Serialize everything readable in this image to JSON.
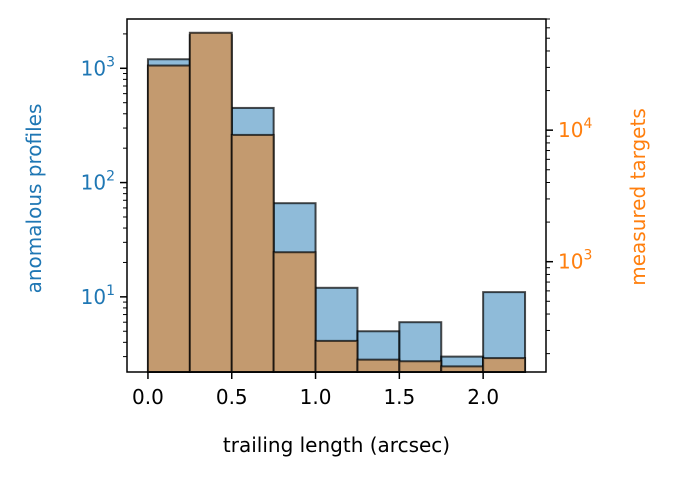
{
  "chart_data": {
    "type": "bar",
    "xlabel": "trailing length (arcsec)",
    "x_ticks": [
      0.0,
      0.5,
      1.0,
      1.5,
      2.0
    ],
    "x_tick_labels": [
      "0.0",
      "0.5",
      "1.0",
      "1.5",
      "2.0"
    ],
    "xlim": [
      -0.125,
      2.375
    ],
    "bin_edges": [
      0.0,
      0.25,
      0.5,
      0.75,
      1.0,
      1.25,
      1.5,
      1.75,
      2.0,
      2.25
    ],
    "left_axis": {
      "label": "anomalous profiles",
      "scale": "log",
      "ylim": [
        2.2,
        2700
      ],
      "major_ticks": [
        10,
        100,
        1000
      ],
      "tick_bases": [
        "10",
        "10",
        "10"
      ],
      "tick_exps": [
        "1",
        "2",
        "3"
      ],
      "color": "#1f77b4"
    },
    "right_axis": {
      "label": "measured targets",
      "scale": "log",
      "ylim": [
        145,
        70000
      ],
      "major_ticks": [
        1000,
        10000
      ],
      "tick_bases": [
        "10",
        "10"
      ],
      "tick_exps": [
        "3",
        "4"
      ],
      "color": "#ff7f0e"
    },
    "series": [
      {
        "axis": "left",
        "fill": "#1f77b4",
        "opacity": 0.5,
        "values": [
          1200,
          1950,
          450,
          66,
          12,
          5,
          6,
          3,
          11
        ]
      },
      {
        "axis": "right",
        "fill": "#c39a6f",
        "opacity": 1,
        "values": [
          31000,
          55000,
          9200,
          1180,
          250,
          180,
          175,
          160,
          185
        ]
      }
    ],
    "grid": false,
    "legend": "none"
  }
}
